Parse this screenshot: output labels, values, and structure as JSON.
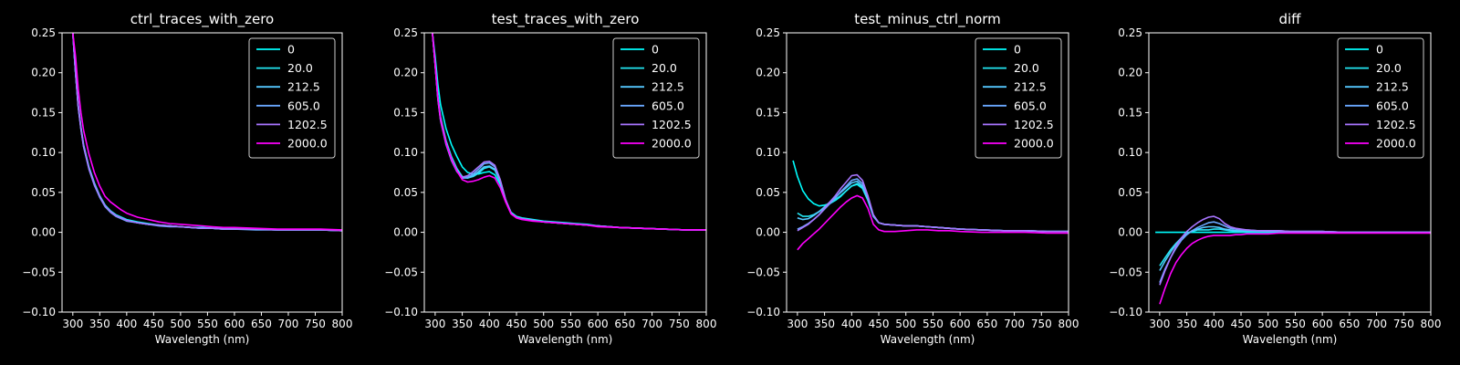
{
  "figure": {
    "background": "#000000",
    "foreground": "#ffffff"
  },
  "legend": {
    "labels": [
      "0",
      "20.0",
      "212.5",
      "605.0",
      "1202.5",
      "2000.0"
    ],
    "colors": [
      "#00ffff",
      "#22e6f2",
      "#55c8ff",
      "#6aa8ff",
      "#a875ff",
      "#ff00ff"
    ]
  },
  "chart_data": [
    {
      "type": "line",
      "title": "ctrl_traces_with_zero",
      "xlabel": "Wavelength (nm)",
      "ylabel": "",
      "xlim": [
        280,
        800
      ],
      "ylim": [
        -0.1,
        0.25
      ],
      "xticks": [
        "300",
        "350",
        "400",
        "450",
        "500",
        "550",
        "600",
        "650",
        "700",
        "750",
        "800"
      ],
      "yticks": [
        "−0.10",
        "−0.05",
        "0.00",
        "0.05",
        "0.10",
        "0.15",
        "0.20",
        "0.25"
      ],
      "legend_position": "top-right",
      "grid": false,
      "x": [
        300,
        305,
        310,
        315,
        320,
        330,
        340,
        350,
        360,
        370,
        380,
        390,
        400,
        420,
        440,
        460,
        480,
        500,
        520,
        540,
        560,
        580,
        600,
        640,
        680,
        720,
        760,
        800
      ],
      "series": [
        {
          "name": "0",
          "values": [
            0.25,
            0.2,
            0.16,
            0.132,
            0.11,
            0.082,
            0.062,
            0.046,
            0.034,
            0.027,
            0.022,
            0.019,
            0.016,
            0.013,
            0.011,
            0.009,
            0.008,
            0.007,
            0.006,
            0.006,
            0.005,
            0.005,
            0.004,
            0.004,
            0.003,
            0.003,
            0.003,
            0.002
          ]
        },
        {
          "name": "20.0",
          "values": [
            0.25,
            0.2,
            0.158,
            0.13,
            0.108,
            0.08,
            0.06,
            0.044,
            0.033,
            0.026,
            0.021,
            0.018,
            0.015,
            0.012,
            0.01,
            0.009,
            0.008,
            0.007,
            0.006,
            0.005,
            0.005,
            0.004,
            0.004,
            0.004,
            0.003,
            0.003,
            0.003,
            0.002
          ]
        },
        {
          "name": "212.5",
          "values": [
            0.25,
            0.2,
            0.159,
            0.131,
            0.109,
            0.081,
            0.061,
            0.045,
            0.033,
            0.026,
            0.021,
            0.018,
            0.015,
            0.012,
            0.01,
            0.009,
            0.008,
            0.007,
            0.006,
            0.005,
            0.005,
            0.004,
            0.004,
            0.004,
            0.003,
            0.003,
            0.003,
            0.002
          ]
        },
        {
          "name": "605.0",
          "values": [
            0.25,
            0.2,
            0.157,
            0.129,
            0.107,
            0.079,
            0.059,
            0.044,
            0.032,
            0.025,
            0.02,
            0.017,
            0.014,
            0.012,
            0.01,
            0.008,
            0.007,
            0.007,
            0.006,
            0.005,
            0.005,
            0.004,
            0.004,
            0.003,
            0.003,
            0.003,
            0.003,
            0.002
          ]
        },
        {
          "name": "1202.5",
          "values": [
            0.25,
            0.2,
            0.158,
            0.13,
            0.108,
            0.08,
            0.06,
            0.045,
            0.033,
            0.026,
            0.021,
            0.018,
            0.015,
            0.012,
            0.01,
            0.009,
            0.008,
            0.007,
            0.006,
            0.005,
            0.005,
            0.004,
            0.004,
            0.004,
            0.003,
            0.003,
            0.003,
            0.002
          ]
        },
        {
          "name": "2000.0",
          "values": [
            0.25,
            0.22,
            0.18,
            0.15,
            0.128,
            0.098,
            0.075,
            0.058,
            0.045,
            0.038,
            0.033,
            0.028,
            0.024,
            0.019,
            0.016,
            0.013,
            0.011,
            0.01,
            0.009,
            0.008,
            0.007,
            0.006,
            0.006,
            0.005,
            0.004,
            0.004,
            0.004,
            0.003
          ]
        }
      ]
    },
    {
      "type": "line",
      "title": "test_traces_with_zero",
      "xlabel": "Wavelength (nm)",
      "ylabel": "",
      "xlim": [
        280,
        800
      ],
      "ylim": [
        -0.1,
        0.25
      ],
      "xticks": [
        "300",
        "350",
        "400",
        "450",
        "500",
        "550",
        "600",
        "650",
        "700",
        "750",
        "800"
      ],
      "yticks": [
        "−0.10",
        "−0.05",
        "0.00",
        "0.05",
        "0.10",
        "0.15",
        "0.20",
        "0.25"
      ],
      "legend_position": "top-right",
      "grid": false,
      "x": [
        295,
        300,
        305,
        310,
        320,
        330,
        340,
        350,
        360,
        370,
        380,
        390,
        400,
        410,
        420,
        430,
        440,
        450,
        460,
        480,
        500,
        520,
        540,
        560,
        580,
        600,
        640,
        680,
        720,
        760,
        800
      ],
      "series": [
        {
          "name": "0",
          "values": [
            0.25,
            0.22,
            0.185,
            0.16,
            0.13,
            0.11,
            0.095,
            0.082,
            0.075,
            0.073,
            0.073,
            0.075,
            0.076,
            0.072,
            0.06,
            0.04,
            0.025,
            0.02,
            0.018,
            0.016,
            0.014,
            0.013,
            0.012,
            0.011,
            0.01,
            0.008,
            0.006,
            0.005,
            0.004,
            0.003,
            0.003
          ]
        },
        {
          "name": "20.0",
          "values": [
            0.25,
            0.21,
            0.17,
            0.145,
            0.115,
            0.095,
            0.08,
            0.07,
            0.068,
            0.07,
            0.074,
            0.08,
            0.082,
            0.078,
            0.063,
            0.04,
            0.024,
            0.019,
            0.017,
            0.015,
            0.013,
            0.012,
            0.011,
            0.01,
            0.009,
            0.008,
            0.006,
            0.005,
            0.004,
            0.003,
            0.003
          ]
        },
        {
          "name": "212.5",
          "values": [
            0.25,
            0.21,
            0.168,
            0.142,
            0.112,
            0.092,
            0.078,
            0.068,
            0.068,
            0.071,
            0.076,
            0.082,
            0.083,
            0.079,
            0.063,
            0.04,
            0.024,
            0.019,
            0.017,
            0.015,
            0.013,
            0.012,
            0.011,
            0.01,
            0.009,
            0.008,
            0.006,
            0.005,
            0.004,
            0.003,
            0.003
          ]
        },
        {
          "name": "605.0",
          "values": [
            0.25,
            0.21,
            0.166,
            0.14,
            0.11,
            0.09,
            0.076,
            0.068,
            0.069,
            0.073,
            0.079,
            0.086,
            0.087,
            0.082,
            0.065,
            0.041,
            0.024,
            0.019,
            0.017,
            0.015,
            0.013,
            0.012,
            0.011,
            0.01,
            0.009,
            0.008,
            0.006,
            0.005,
            0.004,
            0.003,
            0.003
          ]
        },
        {
          "name": "1202.5",
          "values": [
            0.25,
            0.21,
            0.167,
            0.141,
            0.111,
            0.091,
            0.077,
            0.069,
            0.071,
            0.076,
            0.082,
            0.088,
            0.089,
            0.084,
            0.066,
            0.041,
            0.024,
            0.019,
            0.017,
            0.015,
            0.013,
            0.012,
            0.011,
            0.01,
            0.009,
            0.008,
            0.006,
            0.005,
            0.004,
            0.003,
            0.003
          ]
        },
        {
          "name": "2000.0",
          "values": [
            0.25,
            0.21,
            0.168,
            0.142,
            0.112,
            0.092,
            0.077,
            0.066,
            0.063,
            0.064,
            0.066,
            0.069,
            0.071,
            0.068,
            0.056,
            0.038,
            0.023,
            0.018,
            0.016,
            0.014,
            0.013,
            0.012,
            0.011,
            0.01,
            0.009,
            0.007,
            0.006,
            0.005,
            0.004,
            0.003,
            0.003
          ]
        }
      ]
    },
    {
      "type": "line",
      "title": "test_minus_ctrl_norm",
      "xlabel": "Wavelength (nm)",
      "ylabel": "",
      "xlim": [
        280,
        800
      ],
      "ylim": [
        -0.1,
        0.25
      ],
      "xticks": [
        "300",
        "350",
        "400",
        "450",
        "500",
        "550",
        "600",
        "650",
        "700",
        "750",
        "800"
      ],
      "yticks": [
        "−0.10",
        "−0.05",
        "0.00",
        "0.05",
        "0.10",
        "0.15",
        "0.20",
        "0.25"
      ],
      "legend_position": "top-right",
      "grid": false,
      "x": [
        292,
        300,
        310,
        320,
        330,
        340,
        350,
        360,
        370,
        380,
        390,
        400,
        410,
        420,
        430,
        440,
        450,
        460,
        480,
        500,
        520,
        540,
        560,
        580,
        600,
        640,
        680,
        720,
        760,
        800
      ],
      "series": [
        {
          "name": "0",
          "values": [
            0.09,
            0.07,
            0.052,
            0.042,
            0.036,
            0.033,
            0.034,
            0.036,
            0.04,
            0.045,
            0.052,
            0.058,
            0.06,
            0.055,
            0.04,
            0.02,
            0.012,
            0.01,
            0.009,
            0.008,
            0.008,
            0.007,
            0.006,
            0.005,
            0.004,
            0.003,
            0.002,
            0.002,
            0.001,
            0.001
          ]
        },
        {
          "name": "20.0",
          "values": [
            null,
            0.024,
            0.02,
            0.02,
            0.022,
            0.026,
            0.031,
            0.036,
            0.041,
            0.046,
            0.052,
            0.058,
            0.061,
            0.056,
            0.041,
            0.02,
            0.012,
            0.01,
            0.009,
            0.008,
            0.008,
            0.007,
            0.006,
            0.005,
            0.004,
            0.003,
            0.002,
            0.002,
            0.001,
            0.001
          ]
        },
        {
          "name": "212.5",
          "values": [
            null,
            0.018,
            0.016,
            0.017,
            0.021,
            0.026,
            0.032,
            0.038,
            0.044,
            0.05,
            0.056,
            0.062,
            0.064,
            0.058,
            0.042,
            0.02,
            0.012,
            0.01,
            0.009,
            0.008,
            0.008,
            0.007,
            0.006,
            0.005,
            0.004,
            0.003,
            0.002,
            0.002,
            0.001,
            0.001
          ]
        },
        {
          "name": "605.0",
          "values": [
            null,
            0.004,
            0.007,
            0.011,
            0.016,
            0.022,
            0.029,
            0.036,
            0.043,
            0.051,
            0.058,
            0.065,
            0.067,
            0.061,
            0.044,
            0.021,
            0.012,
            0.01,
            0.009,
            0.008,
            0.008,
            0.007,
            0.006,
            0.005,
            0.004,
            0.003,
            0.002,
            0.002,
            0.001,
            0.001
          ]
        },
        {
          "name": "1202.5",
          "values": [
            null,
            0.002,
            0.006,
            0.01,
            0.016,
            0.022,
            0.03,
            0.038,
            0.046,
            0.055,
            0.063,
            0.071,
            0.072,
            0.065,
            0.046,
            0.022,
            0.012,
            0.01,
            0.009,
            0.008,
            0.008,
            0.007,
            0.006,
            0.005,
            0.004,
            0.003,
            0.002,
            0.002,
            0.001,
            0.001
          ]
        },
        {
          "name": "2000.0",
          "values": [
            null,
            -0.022,
            -0.014,
            -0.008,
            -0.002,
            0.004,
            0.011,
            0.018,
            0.025,
            0.032,
            0.038,
            0.043,
            0.046,
            0.043,
            0.03,
            0.01,
            0.003,
            0.001,
            0.001,
            0.002,
            0.003,
            0.003,
            0.002,
            0.002,
            0.001,
            0.0,
            0.0,
            0.0,
            -0.001,
            -0.001
          ]
        }
      ]
    },
    {
      "type": "line",
      "title": "diff",
      "xlabel": "",
      "ylabel": "",
      "xlim": [
        280,
        800
      ],
      "ylim": [
        -0.1,
        0.25
      ],
      "xticks": [
        "300",
        "350",
        "400",
        "450",
        "500",
        "550",
        "600",
        "650",
        "700",
        "750",
        "800"
      ],
      "yticks": [
        "−0.10",
        "−0.05",
        "0.00",
        "0.05",
        "0.10",
        "0.15",
        "0.20",
        "0.25"
      ],
      "legend_position": "top-right",
      "grid": false,
      "x": [
        292,
        300,
        310,
        320,
        330,
        340,
        350,
        360,
        370,
        380,
        390,
        400,
        410,
        420,
        430,
        440,
        450,
        460,
        480,
        500,
        520,
        540,
        560,
        580,
        600,
        640,
        680,
        720,
        760,
        800
      ],
      "series": [
        {
          "name": "0",
          "values": [
            0.0,
            0.0,
            0.0,
            0.0,
            0.0,
            0.0,
            0.0,
            0.0,
            0.0,
            0.0,
            0.0,
            0.0,
            0.0,
            0.0,
            0.0,
            0.0,
            0.0,
            0.0,
            0.0,
            0.0,
            0.0,
            0.0,
            0.0,
            0.0,
            0.0,
            0.0,
            0.0,
            0.0,
            0.0,
            0.0
          ]
        },
        {
          "name": "20.0",
          "values": [
            null,
            -0.042,
            -0.032,
            -0.022,
            -0.014,
            -0.007,
            -0.002,
            0.001,
            0.003,
            0.003,
            0.003,
            0.004,
            0.004,
            0.003,
            0.002,
            0.001,
            0.001,
            0.001,
            0.001,
            0.001,
            0.001,
            0.001,
            0.001,
            0.001,
            0.001,
            0.0,
            0.0,
            0.0,
            0.0,
            0.0
          ]
        },
        {
          "name": "212.5",
          "values": [
            null,
            -0.048,
            -0.036,
            -0.025,
            -0.015,
            -0.007,
            -0.002,
            0.002,
            0.004,
            0.006,
            0.007,
            0.007,
            0.006,
            0.004,
            0.003,
            0.002,
            0.002,
            0.002,
            0.002,
            0.001,
            0.001,
            0.001,
            0.001,
            0.001,
            0.001,
            0.0,
            0.0,
            0.0,
            0.0,
            0.0
          ]
        },
        {
          "name": "605.0",
          "values": [
            null,
            -0.063,
            -0.046,
            -0.032,
            -0.02,
            -0.01,
            -0.003,
            0.002,
            0.006,
            0.009,
            0.012,
            0.013,
            0.011,
            0.008,
            0.005,
            0.004,
            0.003,
            0.003,
            0.002,
            0.002,
            0.002,
            0.001,
            0.001,
            0.001,
            0.001,
            0.0,
            0.0,
            0.0,
            0.0,
            0.0
          ]
        },
        {
          "name": "1202.5",
          "values": [
            null,
            -0.066,
            -0.048,
            -0.032,
            -0.018,
            -0.007,
            0.001,
            0.007,
            0.012,
            0.016,
            0.019,
            0.02,
            0.017,
            0.011,
            0.007,
            0.005,
            0.004,
            0.003,
            0.002,
            0.002,
            0.002,
            0.001,
            0.001,
            0.001,
            0.001,
            0.0,
            0.0,
            0.0,
            0.0,
            0.0
          ]
        },
        {
          "name": "2000.0",
          "values": [
            null,
            -0.09,
            -0.07,
            -0.052,
            -0.038,
            -0.028,
            -0.02,
            -0.014,
            -0.01,
            -0.007,
            -0.005,
            -0.004,
            -0.004,
            -0.004,
            -0.004,
            -0.003,
            -0.003,
            -0.002,
            -0.002,
            -0.002,
            -0.001,
            -0.001,
            -0.001,
            -0.001,
            -0.001,
            -0.001,
            -0.001,
            -0.001,
            -0.001,
            -0.001
          ]
        }
      ]
    }
  ]
}
